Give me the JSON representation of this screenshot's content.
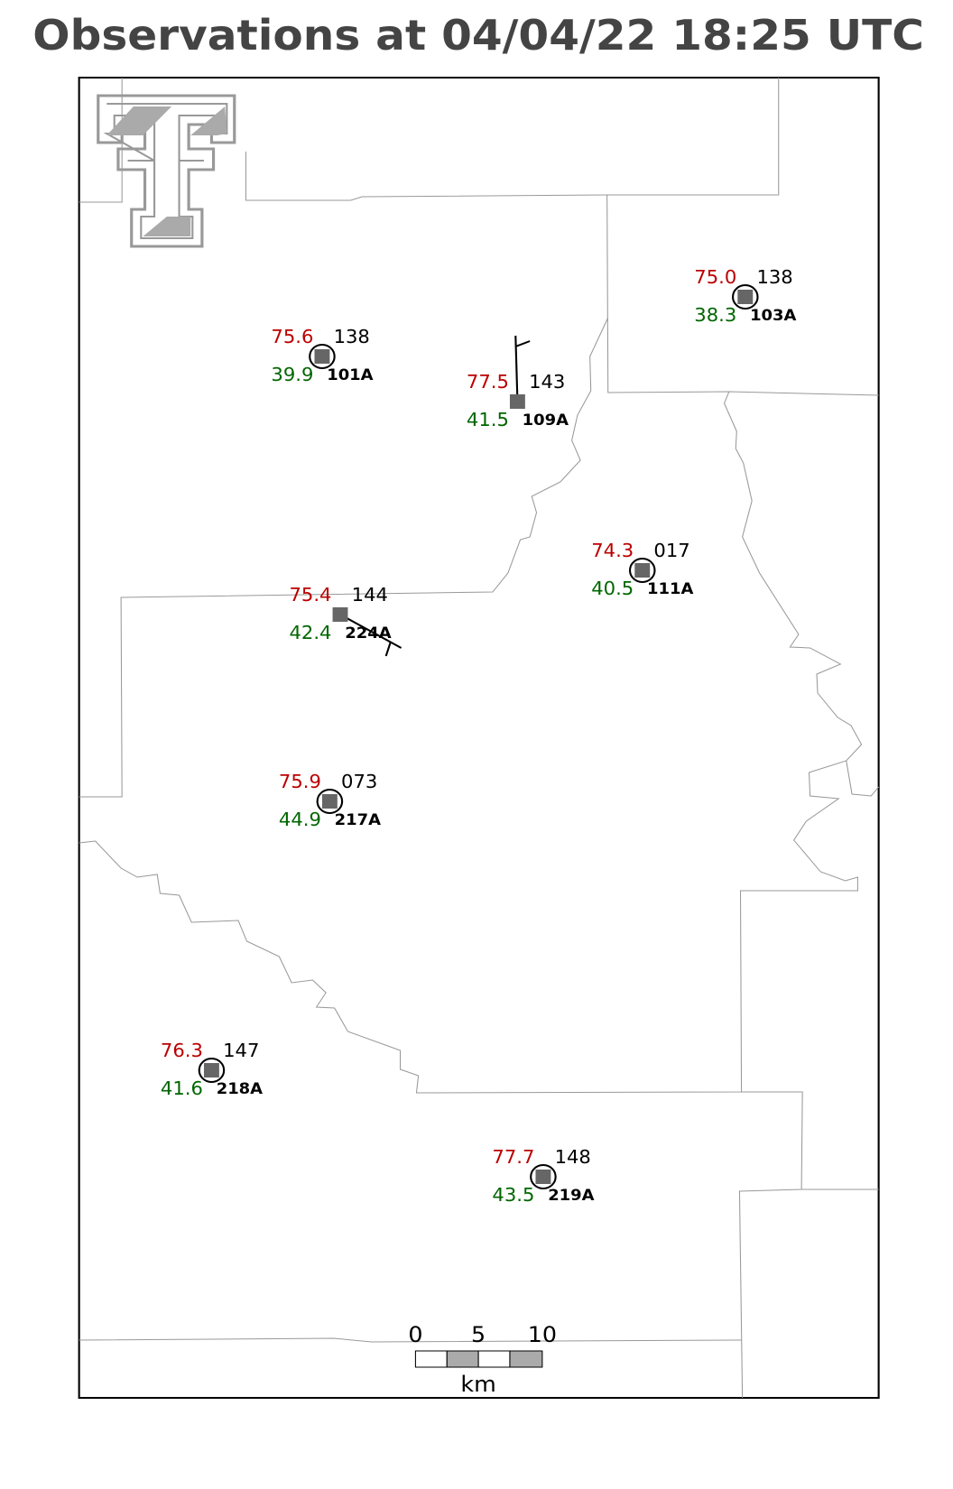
{
  "title": "Observations at 04/04/22 18:25 UTC",
  "stations": [
    {
      "id": "103A",
      "temperature": "75.0",
      "dewpoint": "38.3",
      "pressure": "138"
    },
    {
      "id": "101A",
      "temperature": "75.6",
      "dewpoint": "39.9",
      "pressure": "138"
    },
    {
      "id": "109A",
      "temperature": "77.5",
      "dewpoint": "41.5",
      "pressure": "143"
    },
    {
      "id": "111A",
      "temperature": "74.3",
      "dewpoint": "40.5",
      "pressure": "017"
    },
    {
      "id": "224A",
      "temperature": "75.4",
      "dewpoint": "42.4",
      "pressure": "144"
    },
    {
      "id": "217A",
      "temperature": "75.9",
      "dewpoint": "44.9",
      "pressure": "073"
    },
    {
      "id": "218A",
      "temperature": "76.3",
      "dewpoint": "41.6",
      "pressure": "147"
    },
    {
      "id": "219A",
      "temperature": "77.7",
      "dewpoint": "43.5",
      "pressure": "148"
    }
  ],
  "scale_bar": {
    "ticks": [
      "0",
      "5",
      "10"
    ],
    "unit": "km"
  }
}
